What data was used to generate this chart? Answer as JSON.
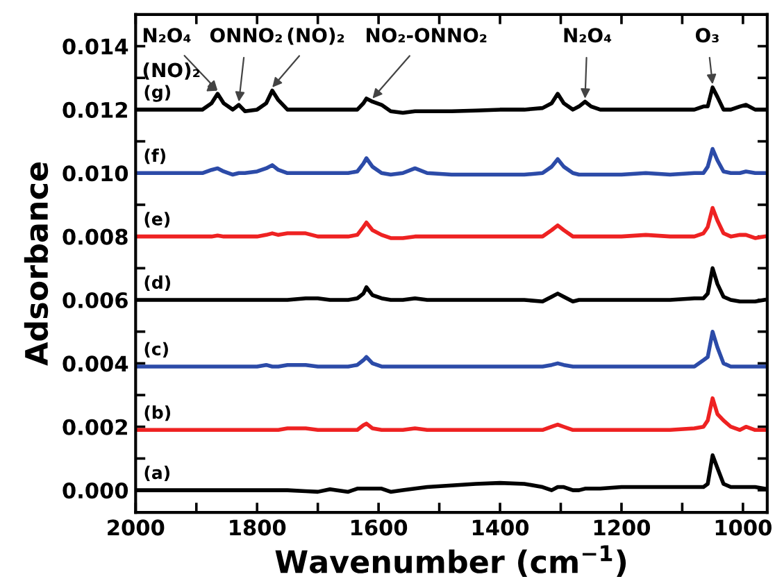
{
  "chart_data": {
    "type": "line",
    "xlabel": "Wavenumber (cm$^{−1}$)",
    "ylabel": "Adsorbance",
    "x": [
      2000,
      1960,
      1920,
      1890,
      1875,
      1865,
      1855,
      1840,
      1830,
      1820,
      1800,
      1785,
      1775,
      1765,
      1750,
      1720,
      1700,
      1680,
      1650,
      1635,
      1625,
      1620,
      1610,
      1595,
      1580,
      1560,
      1540,
      1520,
      1480,
      1440,
      1400,
      1360,
      1330,
      1315,
      1305,
      1295,
      1280,
      1270,
      1260,
      1250,
      1235,
      1200,
      1160,
      1120,
      1080,
      1065,
      1058,
      1050,
      1042,
      1032,
      1020,
      1005,
      995,
      980,
      965
    ],
    "series": [
      {
        "color": "#000000",
        "values": [
          0,
          0,
          0,
          0,
          0,
          0,
          0,
          0,
          0,
          0,
          0,
          0,
          0,
          0,
          0,
          -3e-05,
          -5e-05,
          3e-05,
          -5e-05,
          5e-05,
          5e-05,
          5e-05,
          5e-05,
          5e-05,
          -5e-05,
          0,
          5e-05,
          0.0001,
          0.00015,
          0.0002,
          0.00023,
          0.0002,
          0.0001,
          0,
          0.0001,
          0.0001,
          0,
          0,
          5e-05,
          5e-05,
          5e-05,
          0.0001,
          0.0001,
          0.0001,
          0.0001,
          0.0001,
          0.0002,
          0.0011,
          0.0007,
          0.0002,
          0.0001,
          0.0001,
          0.0001,
          0.0001,
          5e-05
        ]
      },
      {
        "color": "#ee2222",
        "values": [
          0.0019,
          0.0019,
          0.0019,
          0.0019,
          0.0019,
          0.0019,
          0.0019,
          0.0019,
          0.0019,
          0.0019,
          0.0019,
          0.0019,
          0.0019,
          0.0019,
          0.00195,
          0.00195,
          0.0019,
          0.0019,
          0.0019,
          0.0019,
          0.00205,
          0.0021,
          0.00195,
          0.0019,
          0.0019,
          0.0019,
          0.00195,
          0.0019,
          0.0019,
          0.0019,
          0.0019,
          0.0019,
          0.0019,
          0.002,
          0.00207,
          0.002,
          0.0019,
          0.0019,
          0.0019,
          0.0019,
          0.0019,
          0.0019,
          0.0019,
          0.0019,
          0.00195,
          0.002,
          0.0022,
          0.0029,
          0.0024,
          0.0022,
          0.002,
          0.0019,
          0.002,
          0.0019,
          0.0019
        ]
      },
      {
        "color": "#2c4ba8",
        "values": [
          0.0039,
          0.0039,
          0.0039,
          0.0039,
          0.0039,
          0.0039,
          0.0039,
          0.0039,
          0.0039,
          0.0039,
          0.0039,
          0.00395,
          0.0039,
          0.0039,
          0.00395,
          0.00395,
          0.0039,
          0.0039,
          0.0039,
          0.00395,
          0.0041,
          0.0042,
          0.004,
          0.0039,
          0.0039,
          0.0039,
          0.0039,
          0.0039,
          0.0039,
          0.0039,
          0.0039,
          0.0039,
          0.0039,
          0.00395,
          0.004,
          0.00395,
          0.0039,
          0.0039,
          0.0039,
          0.0039,
          0.0039,
          0.0039,
          0.0039,
          0.0039,
          0.0039,
          0.0041,
          0.0042,
          0.005,
          0.0045,
          0.004,
          0.0039,
          0.0039,
          0.0039,
          0.0039,
          0.0039
        ]
      },
      {
        "color": "#000000",
        "values": [
          0.006,
          0.006,
          0.006,
          0.006,
          0.006,
          0.006,
          0.006,
          0.006,
          0.006,
          0.006,
          0.006,
          0.006,
          0.006,
          0.006,
          0.006,
          0.00605,
          0.00605,
          0.006,
          0.006,
          0.00605,
          0.0062,
          0.0064,
          0.00615,
          0.00605,
          0.006,
          0.006,
          0.00605,
          0.006,
          0.006,
          0.006,
          0.006,
          0.006,
          0.00595,
          0.0061,
          0.0062,
          0.0061,
          0.00595,
          0.006,
          0.006,
          0.006,
          0.006,
          0.006,
          0.006,
          0.006,
          0.00605,
          0.00605,
          0.0062,
          0.007,
          0.0065,
          0.0061,
          0.006,
          0.00595,
          0.00595,
          0.00595,
          0.006
        ]
      },
      {
        "color": "#ee2222",
        "values": [
          0.008,
          0.008,
          0.008,
          0.008,
          0.008,
          0.00803,
          0.008,
          0.008,
          0.008,
          0.008,
          0.008,
          0.00805,
          0.0081,
          0.00805,
          0.0081,
          0.0081,
          0.008,
          0.008,
          0.008,
          0.00805,
          0.0083,
          0.00844,
          0.0082,
          0.00805,
          0.00795,
          0.00795,
          0.008,
          0.008,
          0.008,
          0.008,
          0.008,
          0.008,
          0.008,
          0.0082,
          0.00835,
          0.0082,
          0.008,
          0.008,
          0.008,
          0.008,
          0.008,
          0.008,
          0.00805,
          0.008,
          0.008,
          0.0081,
          0.0083,
          0.0089,
          0.0085,
          0.0081,
          0.008,
          0.00805,
          0.00805,
          0.00795,
          0.008
        ]
      },
      {
        "color": "#2c4ba8",
        "values": [
          0.01,
          0.01,
          0.01,
          0.01,
          0.0101,
          0.01015,
          0.01005,
          0.00995,
          0.01,
          0.01,
          0.01005,
          0.01015,
          0.01025,
          0.0101,
          0.01,
          0.01,
          0.01,
          0.01,
          0.01,
          0.01005,
          0.0103,
          0.01047,
          0.0102,
          0.01,
          0.00995,
          0.01,
          0.01015,
          0.01,
          0.00995,
          0.00995,
          0.00995,
          0.00995,
          0.01,
          0.0102,
          0.01044,
          0.0102,
          0.01,
          0.00995,
          0.00995,
          0.00995,
          0.00995,
          0.00995,
          0.01,
          0.00995,
          0.01,
          0.01,
          0.0102,
          0.01076,
          0.0104,
          0.01005,
          0.01,
          0.01,
          0.01005,
          0.01,
          0.01
        ]
      },
      {
        "color": "#000000",
        "values": [
          0.012,
          0.012,
          0.012,
          0.012,
          0.0122,
          0.0125,
          0.0122,
          0.012,
          0.01215,
          0.01195,
          0.012,
          0.0122,
          0.0126,
          0.0123,
          0.012,
          0.012,
          0.012,
          0.012,
          0.012,
          0.012,
          0.0122,
          0.01235,
          0.01225,
          0.01215,
          0.01195,
          0.0119,
          0.01195,
          0.01195,
          0.01195,
          0.01197,
          0.012,
          0.012,
          0.01205,
          0.0122,
          0.0125,
          0.0122,
          0.012,
          0.0121,
          0.01225,
          0.0121,
          0.012,
          0.012,
          0.012,
          0.012,
          0.012,
          0.0121,
          0.0121,
          0.0127,
          0.0124,
          0.012,
          0.012,
          0.0121,
          0.01215,
          0.012,
          0.012
        ]
      }
    ],
    "annotations": [
      {
        "text": "N₂O₄",
        "x": 1865,
        "y": 0.0125
      },
      {
        "text": "(NO)₂",
        "x": 1865,
        "y": 0.0125
      },
      {
        "text": "ONNO₂",
        "x": 1830,
        "y": 0.01215
      },
      {
        "text": "(NO)₂",
        "x": 1775,
        "y": 0.0126
      },
      {
        "text": "NO₂-ONNO₂",
        "x": 1610,
        "y": 0.01225
      },
      {
        "text": "N₂O₄",
        "x": 1260,
        "y": 0.01225
      },
      {
        "text": "O₃",
        "x": 1050,
        "y": 0.0127
      },
      {
        "text": "(a)",
        "x": 2000,
        "y": 0
      },
      {
        "text": "(b)",
        "x": 2000,
        "y": 0.0019
      },
      {
        "text": "(c)",
        "x": 2000,
        "y": 0.0039
      },
      {
        "text": "(d)",
        "x": 2000,
        "y": 0.006
      },
      {
        "text": "(e)",
        "x": 2000,
        "y": 0.008
      },
      {
        "text": "(f)",
        "x": 2000,
        "y": 0.01
      },
      {
        "text": "(g)",
        "x": 2000,
        "y": 0.012
      }
    ],
    "xlim": [
      2000,
      960
    ],
    "ylim": [
      -0.0007,
      0.015
    ],
    "xticks": [
      2000,
      {
        "value": 1900,
        "label": null
      },
      1800,
      {
        "value": 1700,
        "label": null
      },
      1600,
      {
        "value": 1500,
        "label": null
      },
      1400,
      {
        "value": 1300,
        "label": null
      },
      1200,
      {
        "value": 1100,
        "label": null
      },
      1000
    ],
    "yticks": [
      {
        "value": 0,
        "label": "0.000"
      },
      {
        "value": 0.001,
        "label": null
      },
      {
        "value": 0.002,
        "label": "0.002"
      },
      {
        "value": 0.003,
        "label": null
      },
      {
        "value": 0.004,
        "label": "0.004"
      },
      {
        "value": 0.005,
        "label": null
      },
      {
        "value": 0.006,
        "label": "0.006"
      },
      {
        "value": 0.007,
        "label": null
      },
      {
        "value": 0.008,
        "label": "0.008"
      },
      {
        "value": 0.009,
        "label": null
      },
      {
        "value": 0.01,
        "label": "0.010"
      },
      {
        "value": 0.011,
        "label": null
      },
      {
        "value": 0.012,
        "label": "0.012"
      },
      {
        "value": 0.013,
        "label": null
      },
      {
        "value": 0.014,
        "label": "0.014"
      }
    ],
    "grid": false,
    "legend": false,
    "marker": "none",
    "line_style": "solid"
  }
}
